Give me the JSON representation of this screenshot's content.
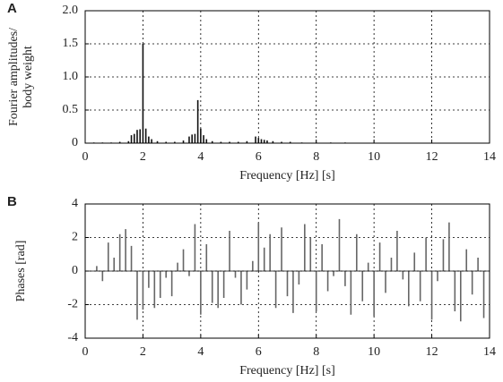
{
  "chart_data": [
    {
      "type": "stem",
      "label": "A",
      "ylabel": [
        "Fourier amplitudes/",
        "body weight"
      ],
      "xlabel": "Frequency [Hz] [s]",
      "x": [
        0.3,
        0.6,
        0.9,
        1.2,
        1.5,
        1.6,
        1.7,
        1.8,
        1.9,
        2.0,
        2.1,
        2.2,
        2.3,
        2.5,
        2.8,
        3.1,
        3.4,
        3.6,
        3.7,
        3.8,
        3.9,
        4.0,
        4.1,
        4.2,
        4.4,
        4.7,
        5.0,
        5.3,
        5.6,
        5.9,
        6.0,
        6.1,
        6.2,
        6.3,
        6.5,
        6.8,
        7.1,
        7.5,
        8.0,
        8.5,
        9.0
      ],
      "values": [
        0.01,
        0.01,
        0.01,
        0.02,
        0.03,
        0.12,
        0.14,
        0.2,
        0.21,
        1.5,
        0.22,
        0.1,
        0.06,
        0.03,
        0.02,
        0.02,
        0.04,
        0.1,
        0.13,
        0.14,
        0.65,
        0.22,
        0.12,
        0.06,
        0.03,
        0.02,
        0.02,
        0.02,
        0.03,
        0.1,
        0.08,
        0.06,
        0.05,
        0.04,
        0.03,
        0.02,
        0.02,
        0.01,
        0.01,
        0.01,
        0.01
      ],
      "color": "#111111",
      "xlim": [
        0,
        14
      ],
      "xticks": [
        0,
        2,
        4,
        6,
        8,
        10,
        12,
        14
      ],
      "ylim": [
        0,
        2
      ],
      "yticks": [
        0,
        0.5,
        {
          "value": 1,
          "label": "1.0"
        },
        1.5,
        {
          "value": 2,
          "label": "2.0"
        }
      ],
      "grid": true
    },
    {
      "type": "stem",
      "label": "B",
      "ylabel": [
        "Phases [rad]"
      ],
      "xlabel": "Frequency [Hz] [s]",
      "x": [
        0.2,
        0.4,
        0.6,
        0.8,
        1.0,
        1.2,
        1.4,
        1.6,
        1.8,
        2.0,
        2.2,
        2.4,
        2.6,
        2.8,
        3.0,
        3.2,
        3.4,
        3.6,
        3.8,
        4.0,
        4.2,
        4.4,
        4.6,
        4.8,
        5.0,
        5.2,
        5.4,
        5.6,
        5.8,
        6.0,
        6.2,
        6.4,
        6.6,
        6.8,
        7.0,
        7.2,
        7.4,
        7.6,
        7.8,
        8.0,
        8.2,
        8.4,
        8.6,
        8.8,
        9.0,
        9.2,
        9.4,
        9.6,
        9.8,
        10.0,
        10.2,
        10.4,
        10.6,
        10.8,
        11.0,
        11.2,
        11.4,
        11.6,
        11.8,
        12.0,
        12.2,
        12.4,
        12.6,
        12.8,
        13.0,
        13.2,
        13.4,
        13.6,
        13.8
      ],
      "values": [
        0,
        0.3,
        -0.6,
        1.7,
        0.8,
        2.2,
        2.5,
        1.5,
        -2.9,
        -2.3,
        -1.0,
        -2.2,
        -1.6,
        -0.4,
        -1.5,
        0.5,
        1.3,
        -0.3,
        2.8,
        -2.6,
        1.6,
        -1.9,
        -2.2,
        -1.6,
        2.4,
        -0.4,
        -2.0,
        -1.1,
        0.6,
        2.9,
        1.4,
        2.2,
        -2.2,
        2.6,
        -1.5,
        -2.5,
        -0.8,
        2.8,
        2.0,
        -2.4,
        1.6,
        -1.2,
        -0.3,
        3.1,
        -0.9,
        -2.6,
        2.2,
        -1.8,
        0.5,
        -2.7,
        1.7,
        -1.3,
        0.8,
        2.4,
        -0.5,
        -2.1,
        1.1,
        -1.8,
        2.0,
        -2.9,
        -0.6,
        1.9,
        2.9,
        -2.4,
        -3.0,
        1.3,
        -1.4,
        0.8,
        -2.8
      ],
      "color": "#666666",
      "xlim": [
        0,
        14
      ],
      "xticks": [
        0,
        2,
        4,
        6,
        8,
        10,
        12,
        14
      ],
      "ylim": [
        -4,
        4
      ],
      "yticks": [
        -4,
        -2,
        0,
        2,
        4
      ],
      "grid": true
    }
  ]
}
